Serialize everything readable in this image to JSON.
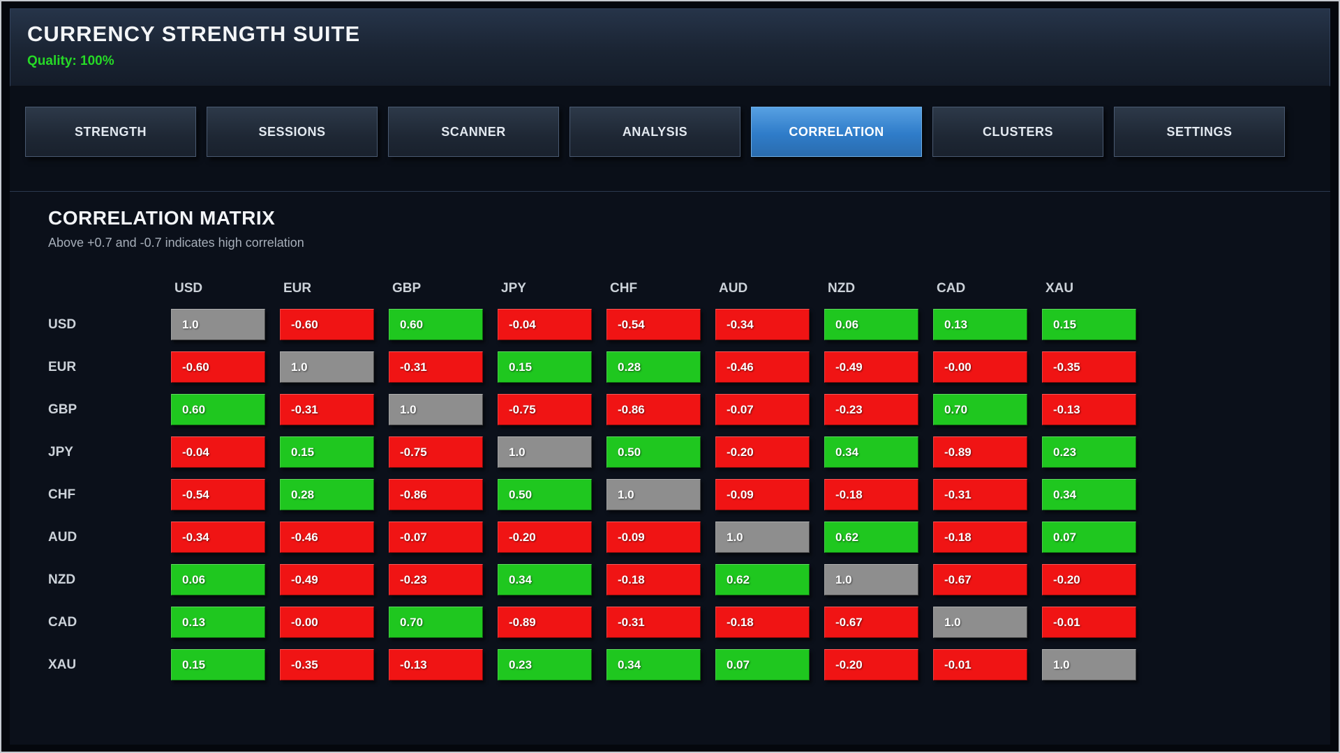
{
  "header": {
    "title": "CURRENCY STRENGTH SUITE",
    "quality_label": "Quality: 100%"
  },
  "tabs": [
    {
      "label": "STRENGTH",
      "active": false
    },
    {
      "label": "SESSIONS",
      "active": false
    },
    {
      "label": "SCANNER",
      "active": false
    },
    {
      "label": "ANALYSIS",
      "active": false
    },
    {
      "label": "CORRELATION",
      "active": true
    },
    {
      "label": "CLUSTERS",
      "active": false
    },
    {
      "label": "SETTINGS",
      "active": false
    }
  ],
  "correlation": {
    "title": "CORRELATION MATRIX",
    "subtitle": "Above +0.7 and -0.7 indicates high correlation",
    "currencies": [
      "USD",
      "EUR",
      "GBP",
      "JPY",
      "CHF",
      "AUD",
      "NZD",
      "CAD",
      "XAU"
    ],
    "matrix": [
      [
        "1.0",
        "-0.60",
        "0.60",
        "-0.04",
        "-0.54",
        "-0.34",
        "0.06",
        "0.13",
        "0.15"
      ],
      [
        "-0.60",
        "1.0",
        "-0.31",
        "0.15",
        "0.28",
        "-0.46",
        "-0.49",
        "-0.00",
        "-0.35"
      ],
      [
        "0.60",
        "-0.31",
        "1.0",
        "-0.75",
        "-0.86",
        "-0.07",
        "-0.23",
        "0.70",
        "-0.13"
      ],
      [
        "-0.04",
        "0.15",
        "-0.75",
        "1.0",
        "0.50",
        "-0.20",
        "0.34",
        "-0.89",
        "0.23"
      ],
      [
        "-0.54",
        "0.28",
        "-0.86",
        "0.50",
        "1.0",
        "-0.09",
        "-0.18",
        "-0.31",
        "0.34"
      ],
      [
        "-0.34",
        "-0.46",
        "-0.07",
        "-0.20",
        "-0.09",
        "1.0",
        "0.62",
        "-0.18",
        "0.07"
      ],
      [
        "0.06",
        "-0.49",
        "-0.23",
        "0.34",
        "-0.18",
        "0.62",
        "1.0",
        "-0.67",
        "-0.20"
      ],
      [
        "0.13",
        "-0.00",
        "0.70",
        "-0.89",
        "-0.31",
        "-0.18",
        "-0.67",
        "1.0",
        "-0.01"
      ],
      [
        "0.15",
        "-0.35",
        "-0.13",
        "0.23",
        "0.34",
        "0.07",
        "-0.20",
        "-0.01",
        "1.0"
      ]
    ]
  },
  "colors": {
    "positive_cell": "#1fc71f",
    "negative_cell": "#f01414",
    "diagonal_cell": "#8e8e8e",
    "active_tab": "#2f7cc9",
    "quality_text": "#26d926"
  }
}
